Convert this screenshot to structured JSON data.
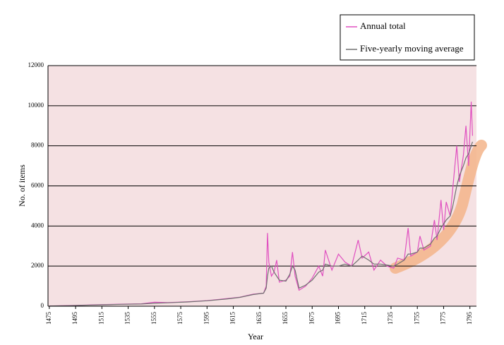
{
  "chart_data": {
    "type": "line",
    "ylabel": "No. of items",
    "xlabel": "Year",
    "x": [
      1475,
      1490,
      1500,
      1515,
      1530,
      1545,
      1555,
      1565,
      1580,
      1595,
      1610,
      1620,
      1630,
      1638,
      1640,
      1641,
      1642,
      1644,
      1646,
      1648,
      1650,
      1655,
      1658,
      1660,
      1662,
      1665,
      1670,
      1675,
      1680,
      1683,
      1685,
      1690,
      1695,
      1700,
      1705,
      1710,
      1713,
      1718,
      1722,
      1727,
      1732,
      1737,
      1740,
      1745,
      1748,
      1750,
      1755,
      1757,
      1760,
      1765,
      1768,
      1770,
      1773,
      1775,
      1777,
      1780,
      1782,
      1785,
      1787,
      1790,
      1792,
      1794,
      1796,
      1797
    ],
    "series": [
      {
        "name": "Annual total",
        "color": "#e050c0",
        "values": [
          10,
          30,
          50,
          80,
          100,
          120,
          200,
          180,
          220,
          280,
          380,
          450,
          600,
          650,
          1000,
          3650,
          2200,
          1500,
          1700,
          2300,
          1200,
          1300,
          1500,
          2700,
          1500,
          800,
          1000,
          1400,
          2000,
          1500,
          2800,
          1800,
          2600,
          2200,
          2000,
          3300,
          2400,
          2700,
          1800,
          2300,
          2000,
          1900,
          2400,
          2300,
          3900,
          2500,
          2700,
          3500,
          2800,
          3000,
          4300,
          3300,
          5300,
          3800,
          5200,
          4500,
          5900,
          8000,
          6200,
          7500,
          9000,
          7000,
          10200,
          8500
        ]
      },
      {
        "name": "Five-yearly moving average",
        "color": "#707070",
        "values": [
          10,
          25,
          45,
          70,
          95,
          110,
          150,
          170,
          210,
          270,
          360,
          440,
          580,
          650,
          900,
          1500,
          1900,
          2000,
          1700,
          1500,
          1300,
          1250,
          1600,
          2000,
          1800,
          900,
          1050,
          1300,
          1700,
          1800,
          2100,
          2000,
          2000,
          2100,
          2000,
          2300,
          2500,
          2300,
          2100,
          2100,
          2050,
          2000,
          2100,
          2300,
          2600,
          2600,
          2700,
          2900,
          2900,
          3100,
          3400,
          3500,
          3900,
          4100,
          4300,
          4500,
          5000,
          6000,
          6500,
          7000,
          7400,
          7600,
          8000,
          8200
        ]
      }
    ],
    "xlim": [
      1474,
      1800
    ],
    "xticks": [
      1475,
      1495,
      1515,
      1535,
      1555,
      1575,
      1595,
      1615,
      1635,
      1655,
      1675,
      1695,
      1715,
      1735,
      1755,
      1775,
      1795
    ],
    "ylim": [
      0,
      12000
    ],
    "yticks": [
      0,
      2000,
      4000,
      6000,
      8000,
      10000,
      12000
    ],
    "grid": true
  }
}
